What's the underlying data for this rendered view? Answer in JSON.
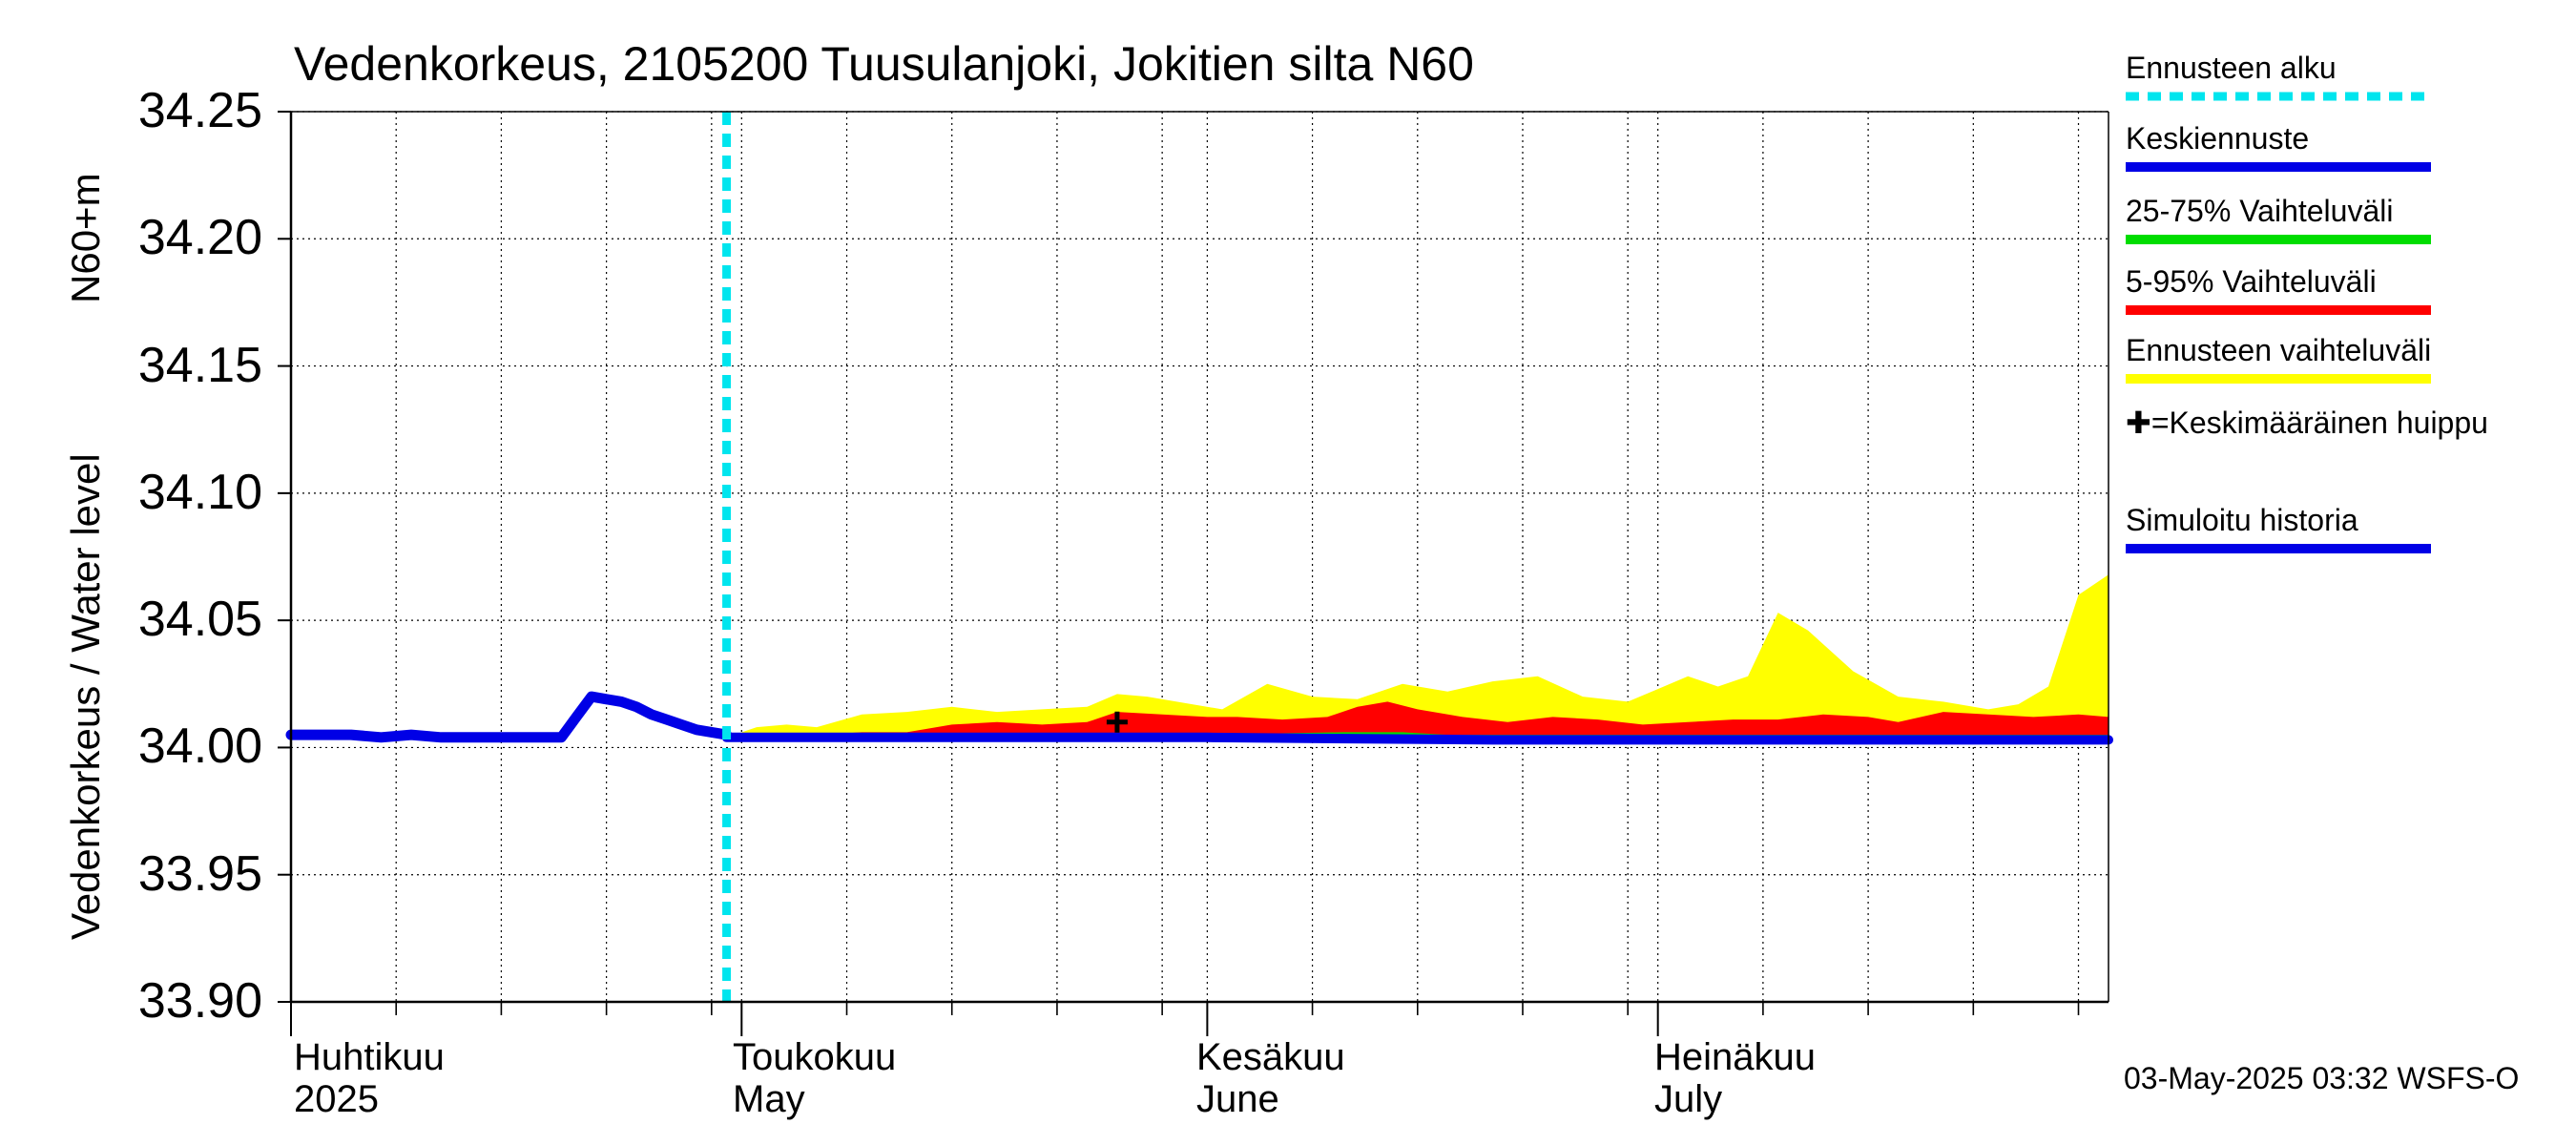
{
  "title": "Vedenkorkeus, 2105200 Tuusulanjoki, Jokitien silta N60",
  "y_axis_label": "Vedenkorkeus / Water level",
  "y_axis_unit": "N60+m",
  "timestamp": "03-May-2025 03:32 WSFS-O",
  "month_labels": [
    {
      "top": "Huhtikuu",
      "bottom": "2025"
    },
    {
      "top": "Toukokuu",
      "bottom": "May"
    },
    {
      "top": "Kesäkuu",
      "bottom": "June"
    },
    {
      "top": "Heinäkuu",
      "bottom": "July"
    }
  ],
  "legend": [
    {
      "label": "Ennusteen alku",
      "color": "#00e5ee",
      "style": "dotted"
    },
    {
      "label": "Keskiennuste",
      "color": "#0000e6",
      "style": "solid"
    },
    {
      "label": "25-75% Vaihteluväli",
      "color": "#00dd00",
      "style": "solid"
    },
    {
      "label": "5-95% Vaihteluväli",
      "color": "#ff0000",
      "style": "solid"
    },
    {
      "label": "Ennusteen vaihteluväli",
      "color": "#ffff00",
      "style": "solid"
    },
    {
      "label": "✚=Keskimääräinen huippu",
      "color": "#000000",
      "style": "marker"
    },
    {
      "label": "Simuloitu historia",
      "color": "#0000e6",
      "style": "solid"
    }
  ],
  "chart_data": {
    "type": "area",
    "title": "Vedenkorkeus, 2105200 Tuusulanjoki, Jokitien silta N60",
    "ylabel": "Vedenkorkeus / Water level N60+m",
    "ylim": [
      33.9,
      34.25
    ],
    "xlim": [
      "2025-04-01",
      "2025-07-31"
    ],
    "yticks": [
      "34.25",
      "34.20",
      "34.15",
      "34.10",
      "34.05",
      "34.00",
      "33.95",
      "33.90"
    ],
    "grid": true,
    "forecast_start": "2025-04-30",
    "average_peak": {
      "x": "2025-05-26",
      "y": 34.01
    },
    "simulated_history": {
      "x": [
        "2025-04-01",
        "2025-04-03",
        "2025-04-05",
        "2025-04-07",
        "2025-04-09",
        "2025-04-11",
        "2025-04-13",
        "2025-04-15",
        "2025-04-17",
        "2025-04-19",
        "2025-04-20",
        "2025-04-21",
        "2025-04-22",
        "2025-04-23",
        "2025-04-24",
        "2025-04-25",
        "2025-04-26",
        "2025-04-27",
        "2025-04-28",
        "2025-04-29",
        "2025-04-30"
      ],
      "y": [
        34.005,
        34.005,
        34.005,
        34.004,
        34.005,
        34.004,
        34.004,
        34.004,
        34.004,
        34.004,
        34.012,
        34.02,
        34.019,
        34.018,
        34.016,
        34.013,
        34.011,
        34.009,
        34.007,
        34.006,
        34.005
      ]
    },
    "series": [
      {
        "name": "Ennusteen vaihteluväli",
        "color": "#ffff00",
        "x": [
          "2025-04-30",
          "2025-05-02",
          "2025-05-04",
          "2025-05-06",
          "2025-05-09",
          "2025-05-12",
          "2025-05-15",
          "2025-05-18",
          "2025-05-21",
          "2025-05-24",
          "2025-05-26",
          "2025-05-28",
          "2025-05-31",
          "2025-06-02",
          "2025-06-05",
          "2025-06-08",
          "2025-06-11",
          "2025-06-14",
          "2025-06-17",
          "2025-06-20",
          "2025-06-23",
          "2025-06-26",
          "2025-06-29",
          "2025-07-01",
          "2025-07-03",
          "2025-07-05",
          "2025-07-07",
          "2025-07-09",
          "2025-07-11",
          "2025-07-14",
          "2025-07-17",
          "2025-07-20",
          "2025-07-23",
          "2025-07-25",
          "2025-07-27",
          "2025-07-29",
          "2025-07-31"
        ],
        "upper": [
          34.004,
          34.008,
          34.009,
          34.008,
          34.013,
          34.014,
          34.016,
          34.014,
          34.015,
          34.016,
          34.021,
          34.02,
          34.017,
          34.015,
          34.025,
          34.02,
          34.019,
          34.025,
          34.022,
          34.026,
          34.028,
          34.02,
          34.018,
          34.023,
          34.028,
          34.024,
          34.028,
          34.053,
          34.046,
          34.03,
          34.02,
          34.018,
          34.015,
          34.017,
          34.024,
          34.06,
          34.068
        ],
        "lower": [
          34.004,
          34.004,
          34.004,
          34.004,
          34.004,
          34.004,
          34.004,
          34.004,
          34.004,
          34.004,
          34.004,
          34.004,
          34.004,
          34.004,
          34.003,
          34.003,
          34.003,
          34.003,
          34.003,
          34.003,
          34.003,
          34.003,
          34.003,
          34.003,
          34.003,
          34.003,
          34.003,
          34.003,
          34.003,
          34.003,
          34.003,
          34.003,
          34.003,
          34.003,
          34.003,
          34.003,
          34.003
        ]
      },
      {
        "name": "5-95% Vaihteluväli",
        "color": "#ff0000",
        "x": [
          "2025-04-30",
          "2025-05-03",
          "2025-05-06",
          "2025-05-09",
          "2025-05-12",
          "2025-05-15",
          "2025-05-18",
          "2025-05-21",
          "2025-05-24",
          "2025-05-26",
          "2025-05-29",
          "2025-06-01",
          "2025-06-03",
          "2025-06-06",
          "2025-06-09",
          "2025-06-11",
          "2025-06-13",
          "2025-06-15",
          "2025-06-18",
          "2025-06-21",
          "2025-06-24",
          "2025-06-27",
          "2025-06-30",
          "2025-07-03",
          "2025-07-06",
          "2025-07-09",
          "2025-07-12",
          "2025-07-15",
          "2025-07-17",
          "2025-07-20",
          "2025-07-23",
          "2025-07-26",
          "2025-07-29",
          "2025-07-31"
        ],
        "upper": [
          34.004,
          34.005,
          34.005,
          34.006,
          34.006,
          34.009,
          34.01,
          34.009,
          34.01,
          34.014,
          34.013,
          34.012,
          34.012,
          34.011,
          34.012,
          34.016,
          34.018,
          34.015,
          34.012,
          34.01,
          34.012,
          34.011,
          34.009,
          34.01,
          34.011,
          34.011,
          34.013,
          34.012,
          34.01,
          34.014,
          34.013,
          34.012,
          34.013,
          34.012
        ],
        "lower": [
          34.004,
          34.004,
          34.004,
          34.004,
          34.004,
          34.004,
          34.004,
          34.004,
          34.004,
          34.004,
          34.004,
          34.003,
          34.003,
          34.003,
          34.002,
          34.002,
          34.003,
          34.003,
          34.003,
          34.002,
          34.002,
          34.003,
          34.003,
          34.003,
          34.003,
          34.003,
          34.003,
          34.003,
          34.003,
          34.003,
          34.003,
          34.003,
          34.003,
          34.003
        ]
      },
      {
        "name": "25-75% Vaihteluväli",
        "color": "#00dd00",
        "x": [
          "2025-04-30",
          "2025-05-31",
          "2025-06-10",
          "2025-06-14",
          "2025-06-17",
          "2025-06-20",
          "2025-07-31"
        ],
        "upper": [
          34.005,
          34.005,
          34.006,
          34.006,
          34.005,
          34.005,
          34.005
        ],
        "lower": [
          34.004,
          34.004,
          34.004,
          34.004,
          34.004,
          34.004,
          34.004
        ]
      },
      {
        "name": "Keskiennuste",
        "color": "#0000e6",
        "x": [
          "2025-04-30",
          "2025-05-05",
          "2025-05-10",
          "2025-05-15",
          "2025-05-20",
          "2025-06-01",
          "2025-06-20",
          "2025-07-10",
          "2025-07-31"
        ],
        "y": [
          34.004,
          34.004,
          34.004,
          34.004,
          34.004,
          34.004,
          34.003,
          34.003,
          34.003
        ]
      }
    ]
  }
}
